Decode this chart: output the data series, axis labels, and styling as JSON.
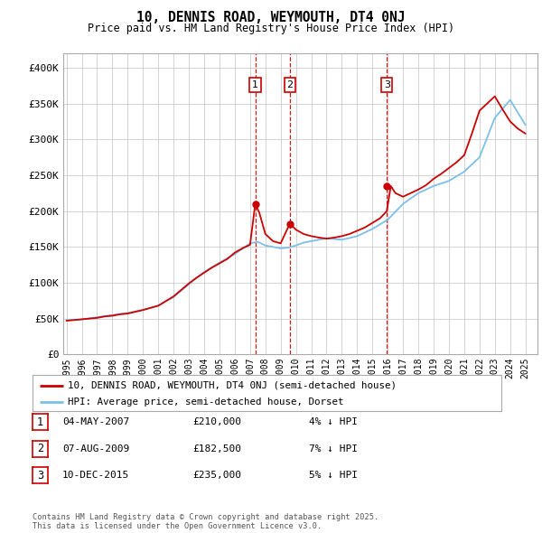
{
  "title": "10, DENNIS ROAD, WEYMOUTH, DT4 0NJ",
  "subtitle": "Price paid vs. HM Land Registry's House Price Index (HPI)",
  "ylabel_ticks": [
    "£0",
    "£50K",
    "£100K",
    "£150K",
    "£200K",
    "£250K",
    "£300K",
    "£350K",
    "£400K"
  ],
  "ytick_values": [
    0,
    50000,
    100000,
    150000,
    200000,
    250000,
    300000,
    350000,
    400000
  ],
  "ylim": [
    0,
    420000
  ],
  "xlim_start": 1994.8,
  "xlim_end": 2025.8,
  "hpi_color": "#7bbfea",
  "price_color": "#cc0000",
  "vline_color": "#cc0000",
  "marker_color": "#cc0000",
  "background_color": "#ffffff",
  "grid_color": "#cccccc",
  "legend_entries": [
    "10, DENNIS ROAD, WEYMOUTH, DT4 0NJ (semi-detached house)",
    "HPI: Average price, semi-detached house, Dorset"
  ],
  "transactions": [
    {
      "num": 1,
      "date": "04-MAY-2007",
      "price": "£210,000",
      "pct": "4% ↓ HPI",
      "year": 2007.34
    },
    {
      "num": 2,
      "date": "07-AUG-2009",
      "price": "£182,500",
      "pct": "7% ↓ HPI",
      "year": 2009.6
    },
    {
      "num": 3,
      "date": "10-DEC-2015",
      "price": "£235,000",
      "pct": "5% ↓ HPI",
      "year": 2015.94
    }
  ],
  "transaction_prices": [
    210000,
    182500,
    235000
  ],
  "footer": "Contains HM Land Registry data © Crown copyright and database right 2025.\nThis data is licensed under the Open Government Licence v3.0.",
  "hpi_years": [
    1995,
    1995.5,
    1996,
    1996.5,
    1997,
    1997.5,
    1998,
    1998.5,
    1999,
    1999.5,
    2000,
    2000.5,
    2001,
    2001.5,
    2002,
    2002.5,
    2003,
    2003.5,
    2004,
    2004.5,
    2005,
    2005.5,
    2006,
    2006.5,
    2007,
    2007.5,
    2008,
    2008.5,
    2009,
    2009.5,
    2010,
    2010.5,
    2011,
    2011.5,
    2012,
    2012.5,
    2013,
    2013.5,
    2014,
    2014.5,
    2015,
    2015.5,
    2016,
    2016.5,
    2017,
    2017.5,
    2018,
    2018.5,
    2019,
    2019.5,
    2020,
    2020.5,
    2021,
    2021.5,
    2022,
    2022.5,
    2023,
    2023.5,
    2024,
    2024.5,
    2025
  ],
  "hpi_values": [
    48000,
    48500,
    49000,
    50500,
    52000,
    53500,
    55000,
    56500,
    58000,
    60000,
    62000,
    65000,
    68000,
    74000,
    80000,
    89000,
    98000,
    106500,
    115000,
    121500,
    128000,
    134000,
    140000,
    147500,
    155000,
    157000,
    152000,
    150000,
    148000,
    149000,
    152000,
    156000,
    158000,
    160000,
    162000,
    161000,
    160000,
    162500,
    165000,
    170000,
    175000,
    181500,
    188000,
    199000,
    210000,
    217500,
    225000,
    230000,
    235000,
    238500,
    242000,
    248500,
    255000,
    265000,
    275000,
    302500,
    330000,
    342500,
    355000,
    337500,
    320000
  ],
  "price_years": [
    1995,
    1995.5,
    1996,
    1996.5,
    1997,
    1997.5,
    1998,
    1998.5,
    1999,
    1999.5,
    2000,
    2000.5,
    2001,
    2001.5,
    2002,
    2002.5,
    2003,
    2003.5,
    2004,
    2004.5,
    2005,
    2005.5,
    2006,
    2006.5,
    2007,
    2007.34,
    2007.6,
    2008,
    2008.5,
    2009,
    2009.6,
    2010,
    2010.5,
    2011,
    2011.5,
    2012,
    2012.5,
    2013,
    2013.5,
    2014,
    2014.5,
    2015,
    2015.5,
    2015.94,
    2016.2,
    2016.5,
    2017,
    2017.5,
    2018,
    2018.5,
    2019,
    2019.5,
    2020,
    2020.5,
    2021,
    2021.5,
    2022,
    2022.5,
    2023,
    2023.5,
    2024,
    2024.5,
    2025
  ],
  "price_values": [
    47000,
    48000,
    49000,
    50000,
    51000,
    53000,
    54000,
    56000,
    57000,
    59500,
    62000,
    65000,
    68000,
    74500,
    81000,
    90000,
    99000,
    107000,
    114000,
    121000,
    127000,
    133000,
    142000,
    148000,
    153000,
    210000,
    198000,
    168000,
    158000,
    155000,
    182500,
    174000,
    168000,
    165000,
    163000,
    161500,
    163000,
    165000,
    168000,
    172500,
    177000,
    183500,
    190000,
    200000,
    235000,
    225000,
    220000,
    225000,
    230000,
    236000,
    245000,
    252000,
    260000,
    268000,
    278000,
    308000,
    340000,
    350000,
    360000,
    342000,
    325000,
    315000,
    308000
  ]
}
